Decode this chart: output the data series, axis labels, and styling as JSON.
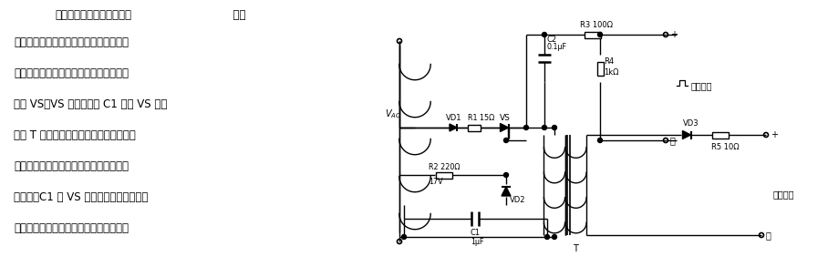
{
  "background": "#ffffff",
  "title_bold": "用小晶闸管放大的触发电路",
  "title_normal": "  采用",
  "description_lines": [
    "小晶闸管的触发电路可以获得较大的触发",
    "功率与脉冲宽度。与电缆同步的输入脉冲",
    "触发 VS，VS 导通，电容 C1 经过 VS 对变",
    "压器 T 初级侧放电，变压器次级则产生较",
    "大功率的脉冲，可以用这脉冲触发大功率",
    "晶闸管。C1 和 VS 起功率放大和加宽脉冲",
    "的作用，解决感性负载所需宽脉冲问题。"
  ],
  "fig_width": 9.08,
  "fig_height": 2.93,
  "dpi": 100
}
